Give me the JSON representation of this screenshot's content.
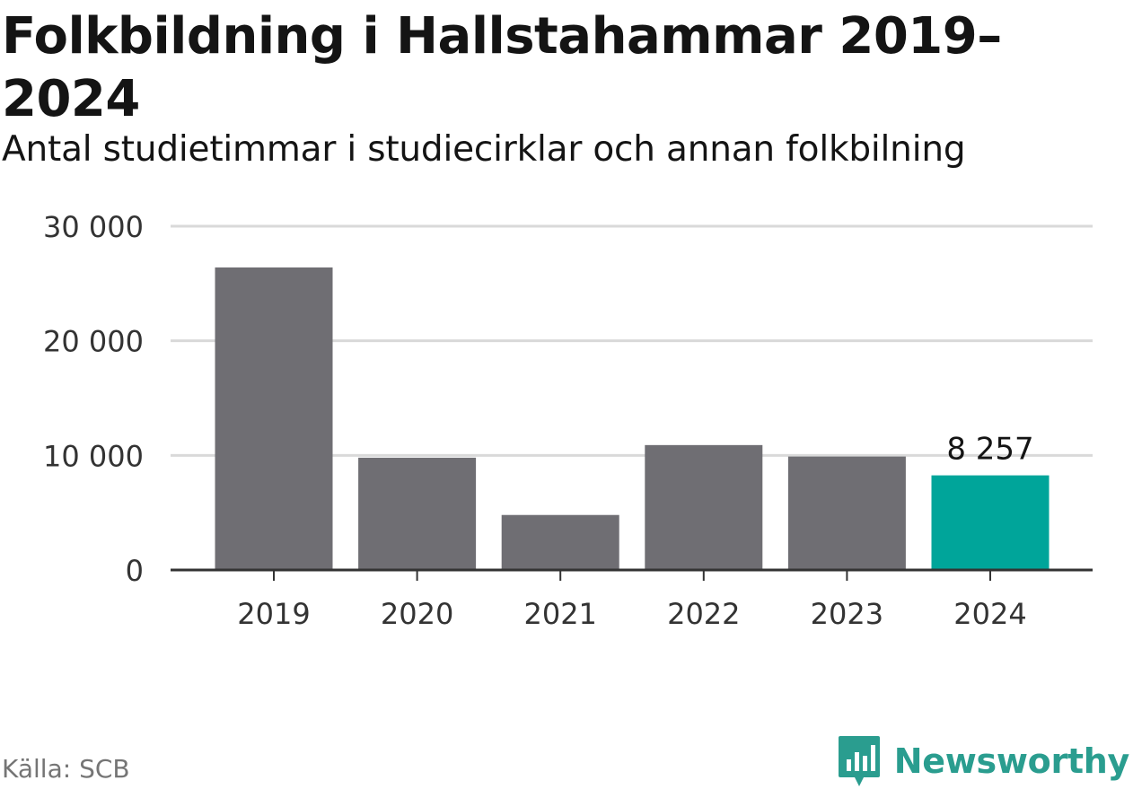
{
  "header": {
    "title": "Folkbildning i Hallstahammar 2019–2024",
    "subtitle": "Antal studietimmar i studiecirklar och annan folkbilning"
  },
  "footer": {
    "source": "Källa: SCB",
    "brand": "Newsworthy"
  },
  "colors": {
    "bar": "#6f6e73",
    "highlight": "#00a59a",
    "grid": "#d9d9d9",
    "axis": "#333333",
    "brand": "#2a9d8f"
  },
  "chart_data": {
    "type": "bar",
    "categories": [
      "2019",
      "2020",
      "2021",
      "2022",
      "2023",
      "2024"
    ],
    "values": [
      26400,
      9800,
      4800,
      10900,
      9900,
      8257
    ],
    "highlight_index": 5,
    "data_labels": [
      {
        "index": 5,
        "text": "8 257"
      }
    ],
    "yticks": [
      {
        "value": 0,
        "label": "0"
      },
      {
        "value": 10000,
        "label": "10 000"
      },
      {
        "value": 20000,
        "label": "20 000"
      },
      {
        "value": 30000,
        "label": "30 000"
      }
    ],
    "ylim": [
      0,
      30000
    ],
    "grid": true
  }
}
